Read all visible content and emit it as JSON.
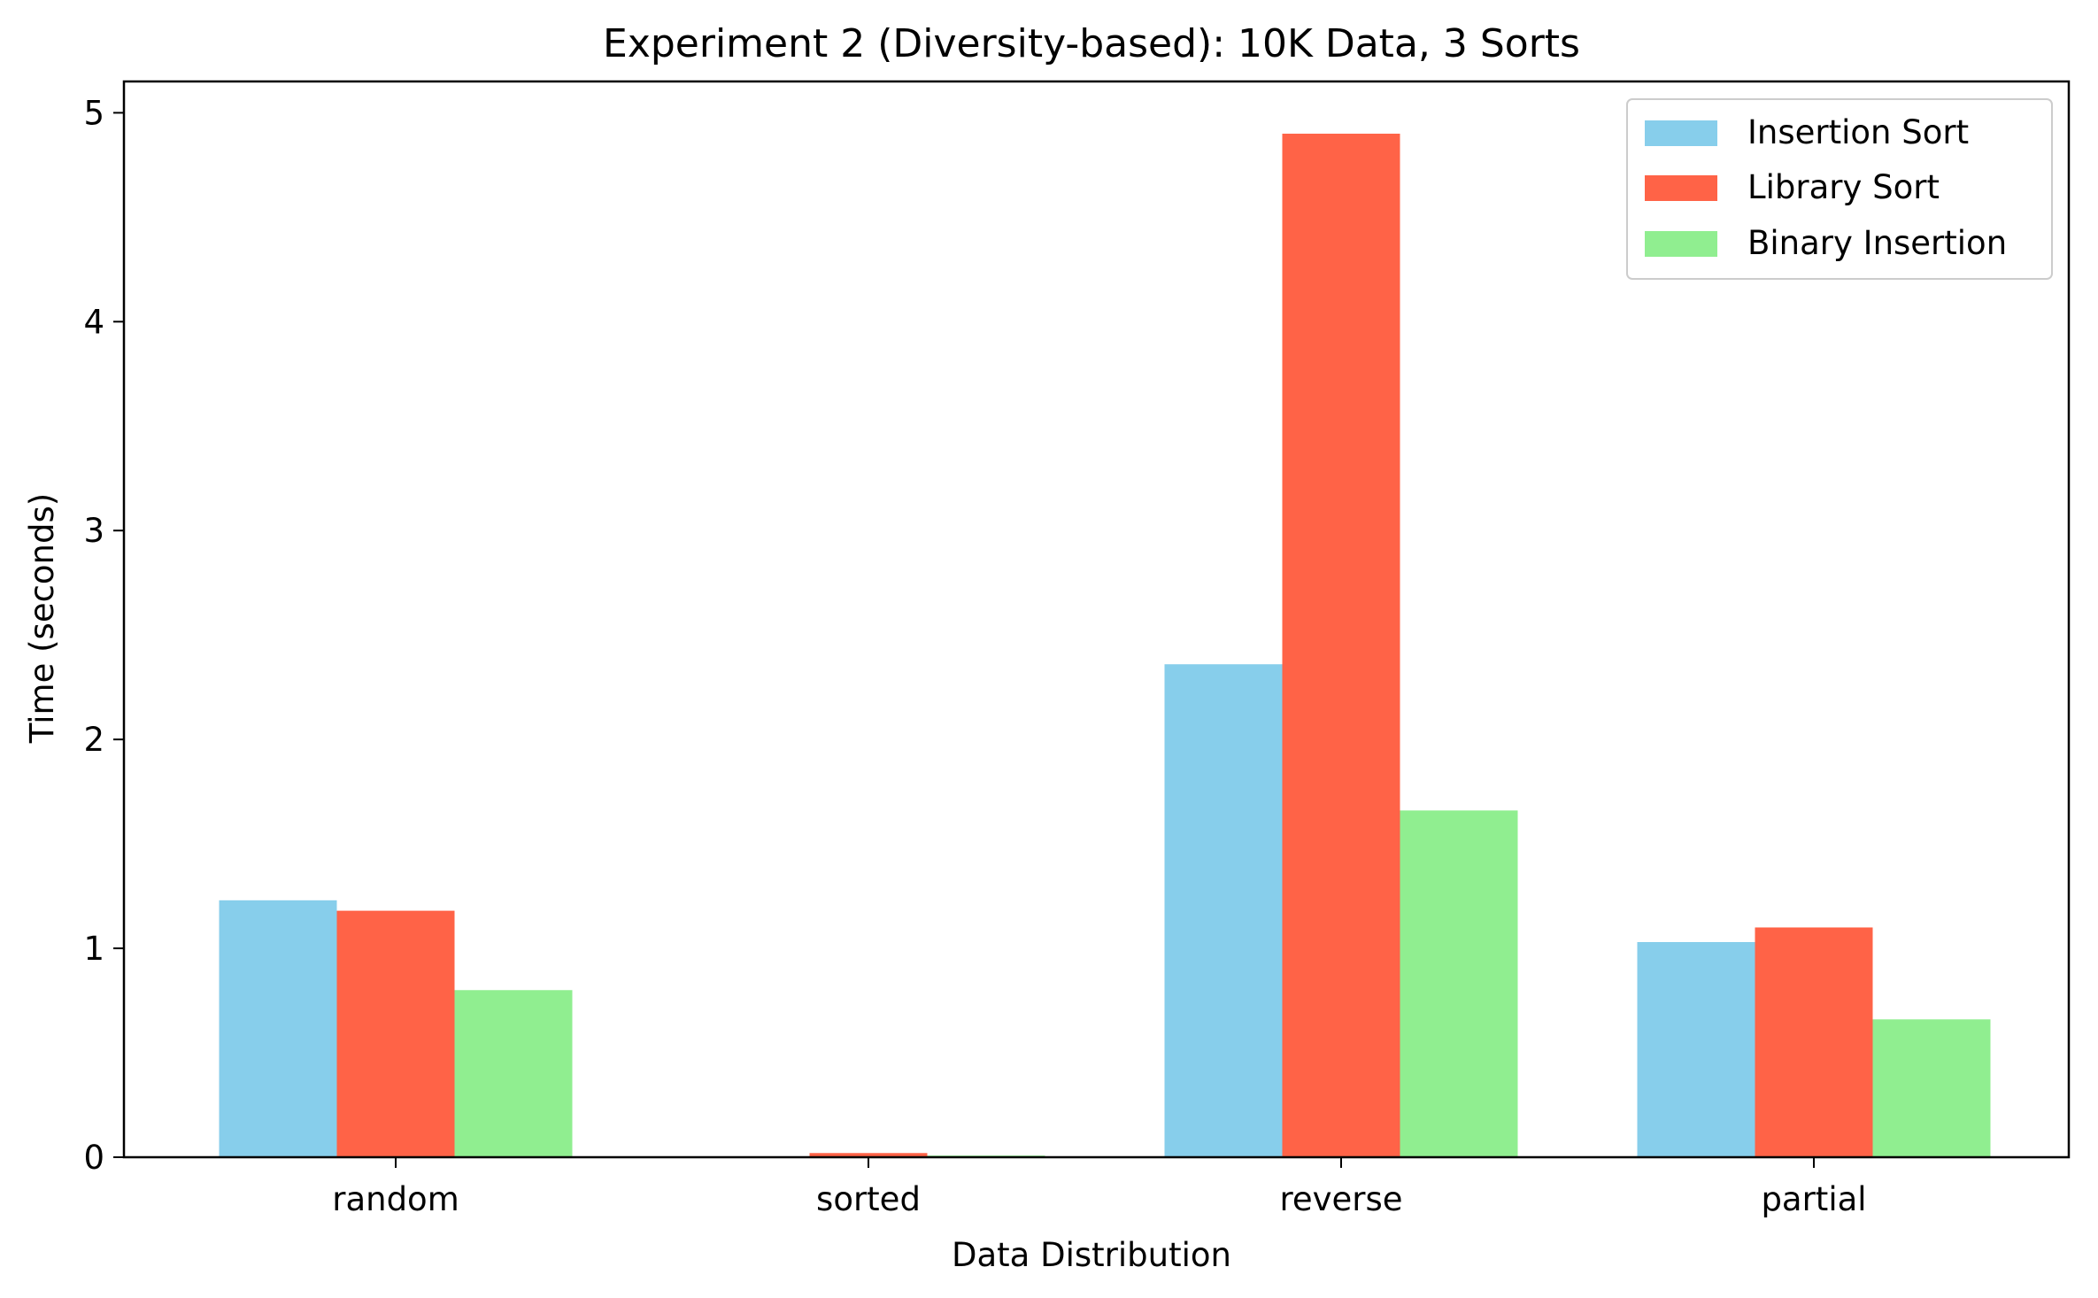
{
  "chart_data": {
    "type": "bar",
    "title": "Experiment 2 (Diversity-based): 10K Data, 3 Sorts",
    "xlabel": "Data Distribution",
    "ylabel": "Time (seconds)",
    "categories": [
      "random",
      "sorted",
      "reverse",
      "partial"
    ],
    "ylim": [
      0,
      5.15
    ],
    "yticks": [
      0,
      1,
      2,
      3,
      4,
      5
    ],
    "grid": false,
    "legend_position": "top-right",
    "series": [
      {
        "name": "Insertion Sort",
        "color": "#87CEEB",
        "values": [
          1.23,
          0.002,
          2.36,
          1.03
        ]
      },
      {
        "name": "Library Sort",
        "color": "#FF6347",
        "values": [
          1.18,
          0.02,
          4.9,
          1.1
        ]
      },
      {
        "name": "Binary Insertion",
        "color": "#90EE90",
        "values": [
          0.8,
          0.008,
          1.66,
          0.66
        ]
      }
    ]
  }
}
